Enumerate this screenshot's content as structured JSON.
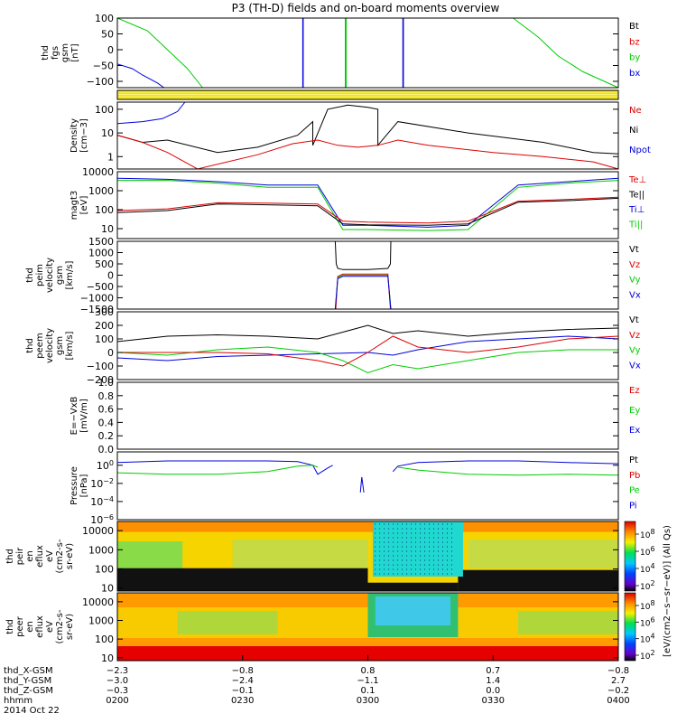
{
  "title": "P3 (TH-D) fields and on-board moments overview",
  "colors": {
    "black": "#000000",
    "red": "#dd0000",
    "green": "#00cc00",
    "blue": "#0000dd",
    "yellow": "#f5e400"
  },
  "chart_data": [
    {
      "type": "line",
      "id": "fgs",
      "ylabel": [
        "thd",
        "fgs",
        "gsm",
        "[nT]"
      ],
      "ylim": [
        -120,
        100
      ],
      "scale": "linear",
      "ticks": [
        {
          "v": 100,
          "t": "100"
        },
        {
          "v": 50,
          "t": "50"
        },
        {
          "v": 0,
          "t": "0"
        },
        {
          "v": -50,
          "t": "−50"
        },
        {
          "v": -100,
          "t": "−100"
        }
      ],
      "legend": [
        {
          "name": "Bt",
          "color": "black"
        },
        {
          "name": "bz",
          "color": "red"
        },
        {
          "name": "by",
          "color": "green"
        },
        {
          "name": "bx",
          "color": "blue"
        }
      ],
      "series": [
        {
          "name": "by",
          "color": "green",
          "x": [
            0,
            0.06,
            0.1,
            0.14,
            0.17
          ],
          "y": [
            100,
            60,
            0,
            -60,
            -120
          ]
        },
        {
          "name": "by",
          "color": "green",
          "x": [
            0.455,
            0.455,
            0.457,
            0.457
          ],
          "y": [
            -120,
            100,
            100,
            -120
          ]
        },
        {
          "name": "by",
          "color": "green",
          "x": [
            0.79,
            0.84,
            0.88,
            0.93,
            1
          ],
          "y": [
            100,
            40,
            -20,
            -70,
            -120
          ]
        },
        {
          "name": "bx",
          "color": "blue",
          "x": [
            0,
            0.03,
            0.05,
            0.08,
            0.093
          ],
          "y": [
            -45,
            -60,
            -80,
            -105,
            -120
          ]
        },
        {
          "name": "bx",
          "color": "blue",
          "x": [
            0.37,
            0.37,
            0.371,
            0.371
          ],
          "y": [
            -120,
            100,
            100,
            -120
          ]
        },
        {
          "name": "bx",
          "color": "blue",
          "x": [
            0.57,
            0.57,
            0.571,
            0.571
          ],
          "y": [
            -120,
            100,
            100,
            -120
          ]
        }
      ]
    },
    {
      "type": "bar",
      "id": "flag",
      "color": "yellow",
      "ylabel": []
    },
    {
      "type": "line",
      "id": "density",
      "ylabel": [
        "Density",
        "[cm−3]"
      ],
      "ylim": [
        0.3,
        200
      ],
      "scale": "log",
      "ticks": [
        {
          "v": 100,
          "t": "100"
        },
        {
          "v": 10,
          "t": "10"
        },
        {
          "v": 1,
          "t": "1"
        }
      ],
      "legend": [
        {
          "name": "Ne",
          "color": "red"
        },
        {
          "name": "Ni",
          "color": "black"
        },
        {
          "name": "Npot",
          "color": "blue"
        }
      ],
      "series": [
        {
          "name": "Ni",
          "color": "black",
          "x": [
            0,
            0.05,
            0.1,
            0.2,
            0.28,
            0.36,
            0.39,
            0.39,
            0.42,
            0.46,
            0.5,
            0.52,
            0.52,
            0.56,
            0.7,
            0.85,
            0.95,
            1
          ],
          "y": [
            8,
            4,
            5,
            1.5,
            2.5,
            8,
            30,
            3,
            100,
            150,
            120,
            100,
            3,
            30,
            10,
            4,
            1.5,
            1.3
          ]
        },
        {
          "name": "Ne",
          "color": "red",
          "x": [
            0,
            0.05,
            0.1,
            0.16,
            0.28,
            0.35,
            0.4,
            0.44,
            0.48,
            0.52,
            0.56,
            0.62,
            0.75,
            0.85,
            0.95,
            1
          ],
          "y": [
            8,
            4,
            1.5,
            0.3,
            1.2,
            3.5,
            5,
            3,
            2.5,
            3,
            5,
            3,
            1.5,
            1,
            0.6,
            0.3
          ]
        },
        {
          "name": "Npot",
          "color": "blue",
          "x": [
            0,
            0.05,
            0.09,
            0.12,
            0.135
          ],
          "y": [
            25,
            30,
            40,
            80,
            200
          ]
        }
      ]
    },
    {
      "type": "line",
      "id": "magt3",
      "ylabel": [
        "magt3",
        "[eV]"
      ],
      "ylim": [
        3,
        10000
      ],
      "scale": "log",
      "ticks": [
        {
          "v": 10000,
          "t": "10000"
        },
        {
          "v": 1000,
          "t": "1000"
        },
        {
          "v": 100,
          "t": "100"
        },
        {
          "v": 10,
          "t": "10"
        }
      ],
      "legend": [
        {
          "name": "Te⊥",
          "color": "red"
        },
        {
          "name": "Te||",
          "color": "black"
        },
        {
          "name": "Ti⊥",
          "color": "blue"
        },
        {
          "name": "Ti||",
          "color": "green"
        }
      ],
      "series": [
        {
          "name": "Ti⊥",
          "color": "blue",
          "x": [
            0,
            0.1,
            0.2,
            0.3,
            0.4,
            0.45,
            0.5,
            0.62,
            0.7,
            0.8,
            0.9,
            1
          ],
          "y": [
            4500,
            4000,
            3000,
            2000,
            2000,
            15,
            15,
            12,
            15,
            2000,
            3000,
            4500
          ]
        },
        {
          "name": "Ti||",
          "color": "green",
          "x": [
            0,
            0.1,
            0.2,
            0.3,
            0.4,
            0.45,
            0.5,
            0.62,
            0.7,
            0.8,
            0.9,
            1
          ],
          "y": [
            3500,
            3500,
            2500,
            1500,
            1500,
            9,
            9,
            8,
            9,
            1500,
            2500,
            3500
          ]
        },
        {
          "name": "Te⊥",
          "color": "red",
          "x": [
            0,
            0.1,
            0.2,
            0.3,
            0.4,
            0.45,
            0.5,
            0.62,
            0.7,
            0.8,
            0.9,
            1
          ],
          "y": [
            90,
            110,
            230,
            220,
            200,
            25,
            22,
            20,
            25,
            280,
            350,
            450
          ]
        },
        {
          "name": "Te||",
          "color": "black",
          "x": [
            0,
            0.1,
            0.2,
            0.3,
            0.4,
            0.45,
            0.5,
            0.62,
            0.7,
            0.8,
            0.9,
            1
          ],
          "y": [
            70,
            90,
            200,
            180,
            160,
            18,
            16,
            15,
            18,
            250,
            300,
            400
          ]
        }
      ]
    },
    {
      "type": "line",
      "id": "peim",
      "ylabel": [
        "thd",
        "peim",
        "velocity",
        "gsm",
        "[km/s]"
      ],
      "ylim": [
        -1500,
        1500
      ],
      "scale": "linear",
      "ticks": [
        {
          "v": 1500,
          "t": "1500"
        },
        {
          "v": 1000,
          "t": "1000"
        },
        {
          "v": 500,
          "t": "500"
        },
        {
          "v": 0,
          "t": "0"
        },
        {
          "v": -500,
          "t": "−500"
        },
        {
          "v": -1000,
          "t": "−1000"
        },
        {
          "v": -1500,
          "t": "−1500"
        }
      ],
      "legend": [
        {
          "name": "Vt",
          "color": "black"
        },
        {
          "name": "Vz",
          "color": "red"
        },
        {
          "name": "Vy",
          "color": "green"
        },
        {
          "name": "Vx",
          "color": "blue"
        }
      ],
      "series": [
        {
          "name": "Vt",
          "color": "black",
          "x": [
            0.435,
            0.437,
            0.44,
            0.45,
            0.5,
            0.54,
            0.545,
            0.546
          ],
          "y": [
            1500,
            500,
            300,
            250,
            250,
            300,
            500,
            1500
          ]
        },
        {
          "name": "Vy",
          "color": "green",
          "x": [
            0.435,
            0.44,
            0.45,
            0.54,
            0.546
          ],
          "y": [
            -1500,
            -100,
            0,
            0,
            -1500
          ]
        },
        {
          "name": "Vz",
          "color": "red",
          "x": [
            0.436,
            0.44,
            0.45,
            0.54,
            0.545
          ],
          "y": [
            -1500,
            -50,
            50,
            50,
            -1500
          ]
        },
        {
          "name": "Vx",
          "color": "blue",
          "x": [
            0.435,
            0.44,
            0.45,
            0.54,
            0.546
          ],
          "y": [
            -1500,
            -150,
            -50,
            -50,
            -1500
          ]
        }
      ]
    },
    {
      "type": "line",
      "id": "peem",
      "ylabel": [
        "thd",
        "peem",
        "velocity",
        "gsm",
        "[km/s]"
      ],
      "ylim": [
        -200,
        300
      ],
      "scale": "linear",
      "ticks": [
        {
          "v": 300,
          "t": "300"
        },
        {
          "v": 200,
          "t": "200"
        },
        {
          "v": 100,
          "t": "100"
        },
        {
          "v": 0,
          "t": "0"
        },
        {
          "v": -100,
          "t": "−100"
        },
        {
          "v": -200,
          "t": "−200"
        }
      ],
      "legend": [
        {
          "name": "Vt",
          "color": "black"
        },
        {
          "name": "Vz",
          "color": "red"
        },
        {
          "name": "Vy",
          "color": "green"
        },
        {
          "name": "Vx",
          "color": "blue"
        }
      ],
      "series": [
        {
          "name": "Vx",
          "color": "blue",
          "x": [
            0,
            0.1,
            0.2,
            0.3,
            0.4,
            0.5,
            0.55,
            0.6,
            0.7,
            0.8,
            0.9,
            1
          ],
          "y": [
            -40,
            -60,
            -30,
            -20,
            -10,
            0,
            -20,
            20,
            80,
            100,
            120,
            100
          ]
        },
        {
          "name": "Vy",
          "color": "green",
          "x": [
            0,
            0.1,
            0.2,
            0.3,
            0.4,
            0.45,
            0.5,
            0.55,
            0.6,
            0.7,
            0.8,
            0.9,
            1
          ],
          "y": [
            0,
            -20,
            20,
            40,
            0,
            -60,
            -150,
            -90,
            -120,
            -60,
            0,
            20,
            20
          ]
        },
        {
          "name": "Vz",
          "color": "red",
          "x": [
            0,
            0.1,
            0.2,
            0.3,
            0.4,
            0.45,
            0.5,
            0.55,
            0.6,
            0.7,
            0.8,
            0.9,
            1
          ],
          "y": [
            0,
            0,
            0,
            -10,
            -60,
            -100,
            0,
            120,
            40,
            0,
            40,
            100,
            120
          ]
        },
        {
          "name": "Vt",
          "color": "black",
          "x": [
            0,
            0.1,
            0.2,
            0.3,
            0.4,
            0.45,
            0.5,
            0.55,
            0.6,
            0.7,
            0.8,
            0.9,
            1
          ],
          "y": [
            80,
            120,
            130,
            120,
            100,
            150,
            200,
            140,
            160,
            120,
            150,
            170,
            180
          ]
        }
      ]
    },
    {
      "type": "line",
      "id": "efield",
      "ylabel": [
        "E=−VxB",
        "[mV/m]"
      ],
      "ylim": [
        0,
        1
      ],
      "scale": "linear",
      "ticks": [
        {
          "v": 1,
          "t": "1.0"
        },
        {
          "v": 0.8,
          "t": "0.8"
        },
        {
          "v": 0.6,
          "t": "0.6"
        },
        {
          "v": 0.4,
          "t": "0.4"
        },
        {
          "v": 0.2,
          "t": "0.2"
        },
        {
          "v": 0,
          "t": "0.0"
        }
      ],
      "legend": [
        {
          "name": "Ez",
          "color": "red"
        },
        {
          "name": "Ey",
          "color": "green"
        },
        {
          "name": "Ex",
          "color": "blue"
        }
      ],
      "series": []
    },
    {
      "type": "line",
      "id": "pressure",
      "ylabel": [
        "Pressure",
        "[nPa]"
      ],
      "ylim": [
        1e-06,
        30
      ],
      "scale": "log",
      "ticks": [
        {
          "v": 1,
          "t": "10^0"
        },
        {
          "v": 0.01,
          "t": "10^−2"
        },
        {
          "v": 0.0001,
          "t": "10^−4"
        },
        {
          "v": 1e-06,
          "t": "10^−6"
        }
      ],
      "legend": [
        {
          "name": "Pt",
          "color": "black"
        },
        {
          "name": "Pb",
          "color": "red"
        },
        {
          "name": "Pe",
          "color": "green"
        },
        {
          "name": "Pi",
          "color": "blue"
        }
      ],
      "series": [
        {
          "name": "Pi",
          "color": "blue",
          "x": [
            0,
            0.1,
            0.2,
            0.3,
            0.36,
            0.39,
            0.4,
            0.42,
            0.43
          ],
          "y": [
            2,
            3,
            3,
            3,
            2.5,
            1,
            0.1,
            0.5,
            1
          ]
        },
        {
          "name": "Pi",
          "color": "blue",
          "x": [
            0.55,
            0.56,
            0.6,
            0.7,
            0.8,
            0.9,
            1
          ],
          "y": [
            0.2,
            0.8,
            2,
            3,
            3,
            2,
            1.5
          ]
        },
        {
          "name": "Pe",
          "color": "green",
          "x": [
            0,
            0.1,
            0.2,
            0.3,
            0.36,
            0.39,
            0.4
          ],
          "y": [
            0.15,
            0.1,
            0.1,
            0.2,
            0.8,
            1,
            0.6
          ]
        },
        {
          "name": "Pe",
          "color": "green",
          "x": [
            0.56,
            0.6,
            0.7,
            0.8,
            0.9,
            1
          ],
          "y": [
            0.6,
            0.3,
            0.1,
            0.08,
            0.1,
            0.08
          ]
        },
        {
          "name": "Pi",
          "color": "blue",
          "x": [
            0.485,
            0.488,
            0.492
          ],
          "y": [
            0.001,
            0.05,
            0.001
          ]
        }
      ]
    },
    {
      "type": "heatmap",
      "id": "peir",
      "ylabel": [
        "thd",
        "peir",
        "en",
        "eflux",
        "eV",
        "(cm2-s-",
        "sr-eV)"
      ],
      "ylim": [
        7,
        30000
      ],
      "scale": "log",
      "ticks": [
        {
          "v": 10000,
          "t": "10000"
        },
        {
          "v": 1000,
          "t": "1000"
        },
        {
          "v": 100,
          "t": "100"
        },
        {
          "v": 10,
          "t": "10"
        }
      ]
    },
    {
      "type": "heatmap",
      "id": "peer",
      "ylabel": [
        "thd",
        "peer",
        "en",
        "eflux",
        "eV",
        "(cm2-s-",
        "sr-eV)"
      ],
      "ylim": [
        7,
        30000
      ],
      "scale": "log",
      "ticks": [
        {
          "v": 10000,
          "t": "10000"
        },
        {
          "v": 1000,
          "t": "1000"
        },
        {
          "v": 100,
          "t": "100"
        },
        {
          "v": 10,
          "t": "10"
        }
      ]
    }
  ],
  "colorbar": {
    "ticks": [
      "10^8",
      "10^6",
      "10^4",
      "10^2"
    ],
    "label": "[eV/(cm2−s−sr−eV)] (All Qs)",
    "label2": "[eV/(cm2−s−sr−eV)] (All Qs)"
  },
  "xaxis": {
    "row_labels": [
      "thd_X-GSM",
      "thd_Y-GSM",
      "thd_Z-GSM",
      "hhmm",
      "2014 Oct 22"
    ],
    "columns": [
      {
        "x": 0,
        "vals": [
          "−2.3",
          "−3.0",
          "−0.3",
          "0200"
        ]
      },
      {
        "x": 0.25,
        "vals": [
          "−0.8",
          "−2.4",
          "−0.1",
          "0230"
        ]
      },
      {
        "x": 0.5,
        "vals": [
          "0.8",
          "−1.1",
          "0.1",
          "0300"
        ]
      },
      {
        "x": 0.75,
        "vals": [
          "0.7",
          "1.4",
          "0.0",
          "0330"
        ]
      },
      {
        "x": 1,
        "vals": [
          "−0.8",
          "2.7",
          "−0.2",
          "0400"
        ]
      }
    ]
  }
}
